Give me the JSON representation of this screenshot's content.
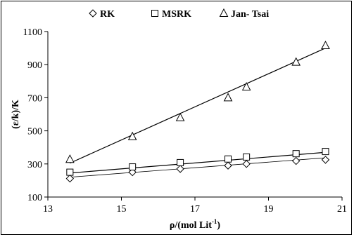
{
  "chart_data": {
    "type": "scatter",
    "xlabel": "ρ/(mol Lit",
    "xlabel_sup": "-1",
    "xlabel_tail": ")",
    "ylabel": "(ε/k)/K",
    "xlim": [
      13,
      21
    ],
    "ylim": [
      100,
      1100
    ],
    "xticks": [
      "13",
      "15",
      "17",
      "19",
      "21"
    ],
    "yticks": [
      "100",
      "300",
      "500",
      "700",
      "900",
      "1100"
    ],
    "grid": false,
    "legend_position": "top",
    "series": [
      {
        "name": "RK",
        "marker": "diamond",
        "x": [
          13.6,
          15.3,
          16.6,
          17.9,
          18.4,
          19.75,
          20.55
        ],
        "y": [
          212,
          250,
          270,
          290,
          300,
          318,
          325
        ],
        "fit": [
          [
            13.6,
            220
          ],
          [
            20.55,
            337
          ]
        ]
      },
      {
        "name": "MSRK",
        "marker": "square",
        "x": [
          13.6,
          15.3,
          16.6,
          17.9,
          18.4,
          19.75,
          20.55
        ],
        "y": [
          250,
          282,
          308,
          330,
          342,
          362,
          375
        ],
        "fit": [
          [
            13.6,
            245
          ],
          [
            20.55,
            370
          ]
        ]
      },
      {
        "name": "Jan- Tsai",
        "marker": "triangle",
        "x": [
          13.6,
          15.3,
          16.6,
          17.9,
          18.4,
          19.75,
          20.55
        ],
        "y": [
          328,
          465,
          580,
          700,
          765,
          915,
          1015
        ],
        "fit": [
          [
            13.6,
            305
          ],
          [
            20.55,
            1000
          ]
        ]
      }
    ]
  }
}
